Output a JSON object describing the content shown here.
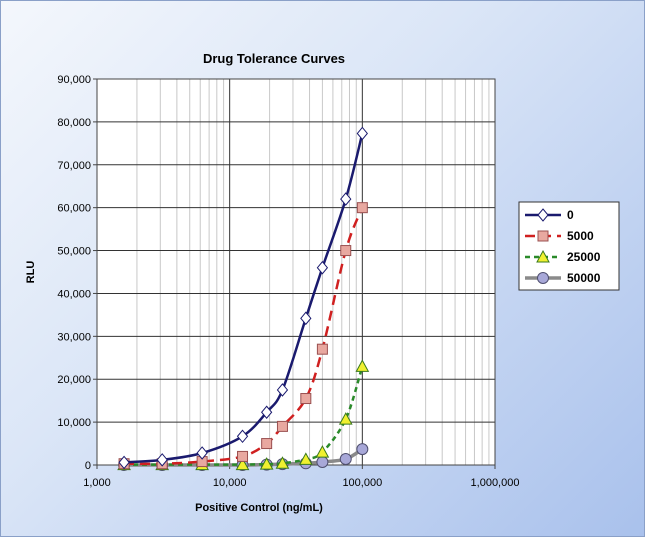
{
  "chart_data": {
    "type": "line",
    "title": "Drug Tolerance Curves",
    "xlabel": "Positive Control  (ng/mL)",
    "ylabel": "RLU",
    "xscale": "log",
    "xlim": [
      1000,
      1000000
    ],
    "ylim": [
      0,
      90000
    ],
    "x_ticks": [
      {
        "value": 1000,
        "label": "1,000"
      },
      {
        "value": 10000,
        "label": "10,000"
      },
      {
        "value": 100000,
        "label": "100,000"
      },
      {
        "value": 1000000,
        "label": "1,000,000"
      }
    ],
    "y_ticks": [
      {
        "value": 0,
        "label": "0"
      },
      {
        "value": 10000,
        "label": "10,000"
      },
      {
        "value": 20000,
        "label": "20,000"
      },
      {
        "value": 30000,
        "label": "30,000"
      },
      {
        "value": 40000,
        "label": "40,000"
      },
      {
        "value": 50000,
        "label": "50,000"
      },
      {
        "value": 60000,
        "label": "60,000"
      },
      {
        "value": 70000,
        "label": "70,000"
      },
      {
        "value": 80000,
        "label": "80,000"
      },
      {
        "value": 90000,
        "label": "90,000"
      }
    ],
    "grid": true,
    "legend_position": "right",
    "series": [
      {
        "name": "0",
        "color": "#1a1a6e",
        "dash": "solid",
        "marker": "diamond",
        "marker_fill": "#ffffff",
        "points": [
          {
            "x": 1600,
            "y": 600
          },
          {
            "x": 3100,
            "y": 1200
          },
          {
            "x": 6200,
            "y": 2800
          },
          {
            "x": 12500,
            "y": 6700
          },
          {
            "x": 19000,
            "y": 12300
          },
          {
            "x": 25000,
            "y": 17500
          },
          {
            "x": 37500,
            "y": 34200
          },
          {
            "x": 50000,
            "y": 46000
          },
          {
            "x": 75000,
            "y": 62000
          },
          {
            "x": 100000,
            "y": 77300
          }
        ]
      },
      {
        "name": "5000",
        "color": "#d02020",
        "dash": "dashed",
        "marker": "square",
        "marker_fill": "#e8a8a0",
        "points": [
          {
            "x": 1600,
            "y": 300
          },
          {
            "x": 3100,
            "y": 300
          },
          {
            "x": 6200,
            "y": 800
          },
          {
            "x": 12500,
            "y": 2000
          },
          {
            "x": 19000,
            "y": 5000
          },
          {
            "x": 25000,
            "y": 9000
          },
          {
            "x": 37500,
            "y": 15500
          },
          {
            "x": 50000,
            "y": 27000
          },
          {
            "x": 75000,
            "y": 50000
          },
          {
            "x": 100000,
            "y": 60000
          }
        ]
      },
      {
        "name": "25000",
        "color": "#2a8a2a",
        "dash": "dashed",
        "marker": "triangle",
        "marker_fill": "#f0f030",
        "points": [
          {
            "x": 1600,
            "y": 100
          },
          {
            "x": 3100,
            "y": 100
          },
          {
            "x": 6200,
            "y": 100
          },
          {
            "x": 12500,
            "y": 100
          },
          {
            "x": 19000,
            "y": 200
          },
          {
            "x": 25000,
            "y": 400
          },
          {
            "x": 37500,
            "y": 1300
          },
          {
            "x": 50000,
            "y": 3000
          },
          {
            "x": 75000,
            "y": 10700
          },
          {
            "x": 100000,
            "y": 23000
          }
        ]
      },
      {
        "name": "50000",
        "color": "#8a8a8a",
        "dash": "solid",
        "marker": "circle",
        "marker_fill": "#a8a8d8",
        "points": [
          {
            "x": 1600,
            "y": 0
          },
          {
            "x": 3100,
            "y": 0
          },
          {
            "x": 6200,
            "y": 0
          },
          {
            "x": 12500,
            "y": 0
          },
          {
            "x": 19000,
            "y": 100
          },
          {
            "x": 25000,
            "y": 200
          },
          {
            "x": 37500,
            "y": 400
          },
          {
            "x": 50000,
            "y": 700
          },
          {
            "x": 75000,
            "y": 1400
          },
          {
            "x": 100000,
            "y": 3700
          }
        ]
      }
    ]
  }
}
